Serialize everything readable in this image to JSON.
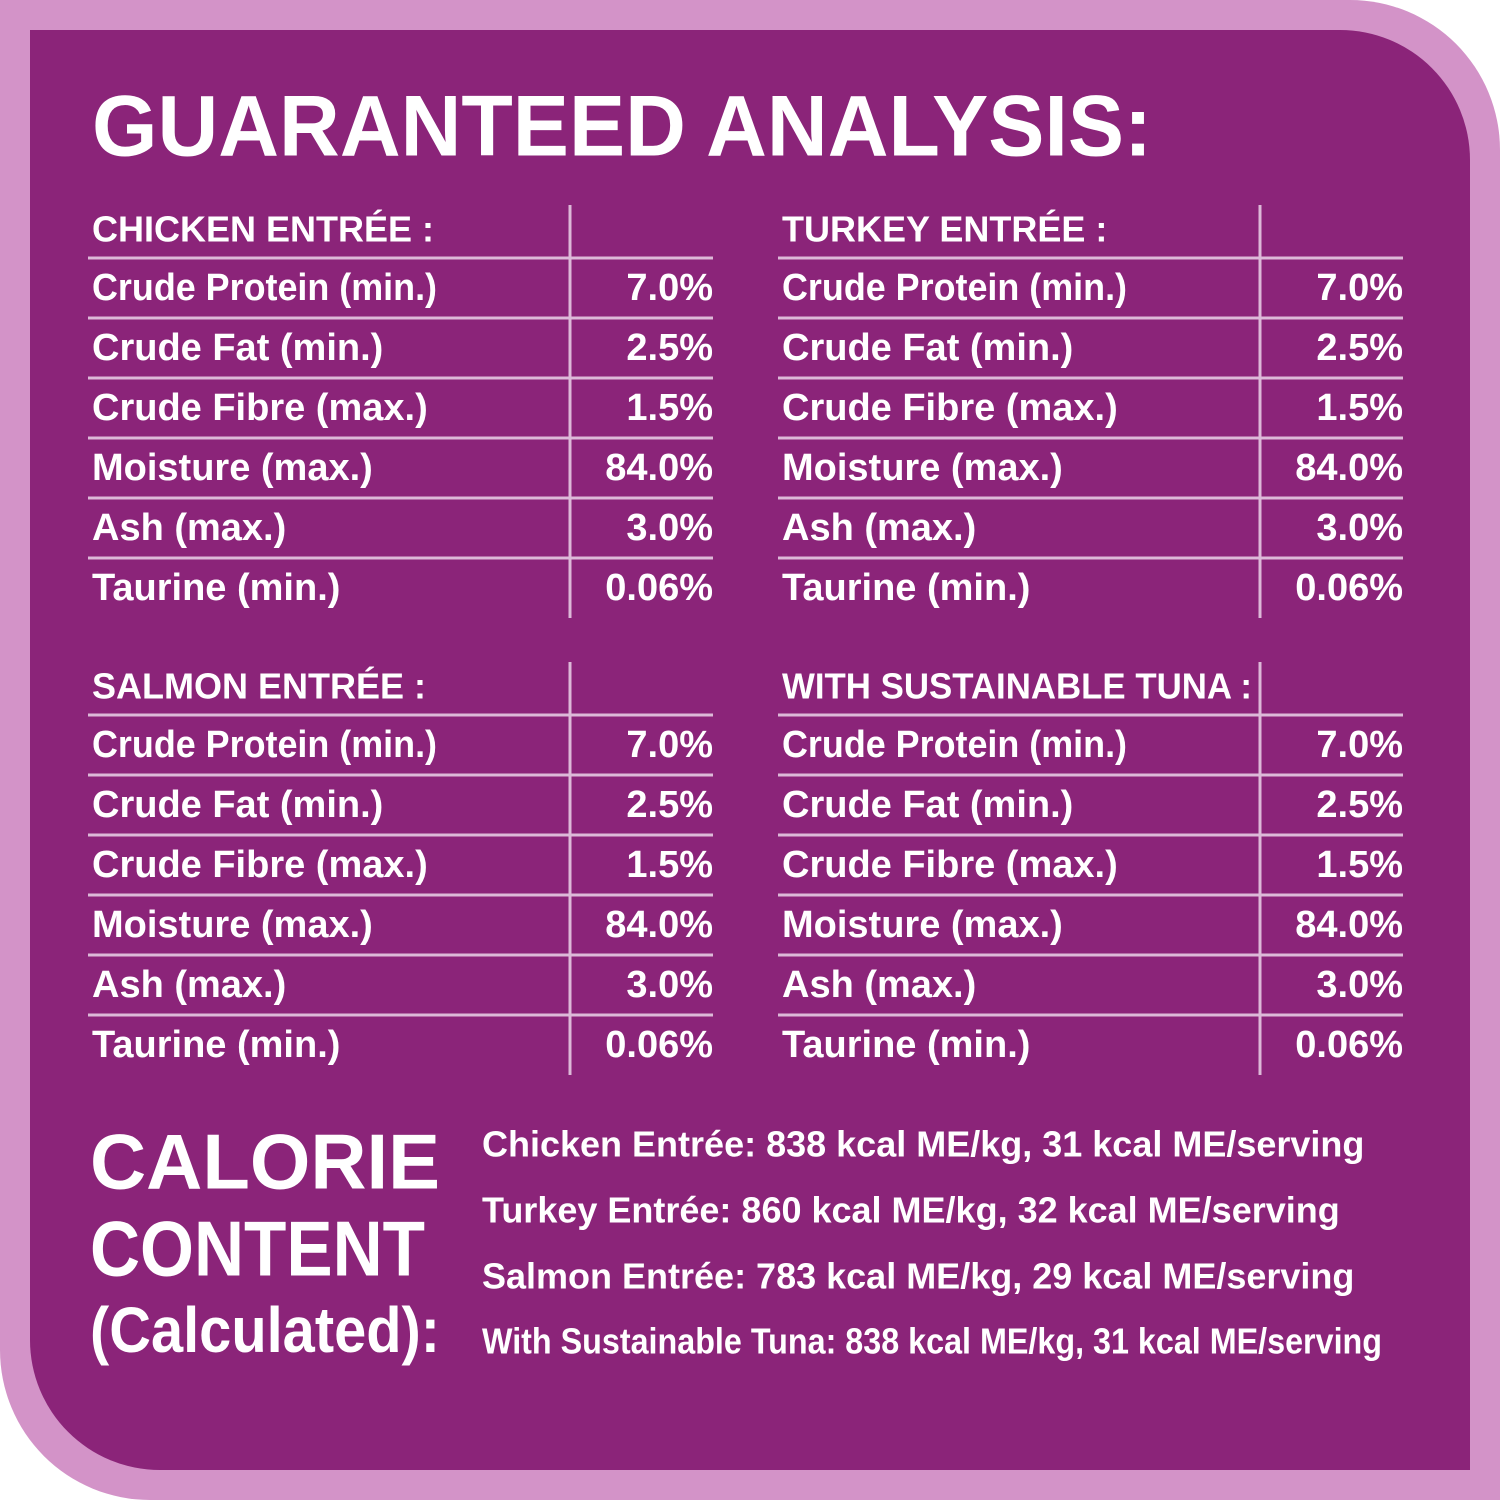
{
  "header": {
    "title": "GUARANTEED ANALYSIS:"
  },
  "tables": [
    {
      "title": "CHICKEN ENTRÉE :",
      "rows": [
        [
          "Crude Protein (min.)",
          "7.0%"
        ],
        [
          "Crude Fat (min.)",
          "2.5%"
        ],
        [
          "Crude Fibre (max.)",
          "1.5%"
        ],
        [
          "Moisture (max.)",
          "84.0%"
        ],
        [
          "Ash (max.)",
          "3.0%"
        ],
        [
          "Taurine (min.)",
          "0.06%"
        ]
      ]
    },
    {
      "title": "TURKEY ENTRÉE :",
      "rows": [
        [
          "Crude Protein (min.)",
          "7.0%"
        ],
        [
          "Crude Fat (min.)",
          "2.5%"
        ],
        [
          "Crude Fibre (max.)",
          "1.5%"
        ],
        [
          "Moisture (max.)",
          "84.0%"
        ],
        [
          "Ash (max.)",
          "3.0%"
        ],
        [
          "Taurine (min.)",
          "0.06%"
        ]
      ]
    },
    {
      "title": "SALMON ENTRÉE :",
      "rows": [
        [
          "Crude Protein (min.)",
          "7.0%"
        ],
        [
          "Crude Fat (min.)",
          "2.5%"
        ],
        [
          "Crude Fibre (max.)",
          "1.5%"
        ],
        [
          "Moisture (max.)",
          "84.0%"
        ],
        [
          "Ash (max.)",
          "3.0%"
        ],
        [
          "Taurine (min.)",
          "0.06%"
        ]
      ]
    },
    {
      "title": "WITH SUSTAINABLE TUNA :",
      "rows": [
        [
          "Crude Protein (min.)",
          "7.0%"
        ],
        [
          "Crude Fat (min.)",
          "2.5%"
        ],
        [
          "Crude Fibre (max.)",
          "1.5%"
        ],
        [
          "Moisture (max.)",
          "84.0%"
        ],
        [
          "Ash (max.)",
          "3.0%"
        ],
        [
          "Taurine (min.)",
          "0.06%"
        ]
      ]
    }
  ],
  "calorie": {
    "title_lines": [
      "CALORIE",
      "CONTENT",
      "(Calculated):"
    ],
    "lines": [
      "Chicken Entrée: 838 kcal ME/kg, 31 kcal ME/serving",
      "Turkey Entrée: 860 kcal ME/kg, 32 kcal ME/serving",
      "Salmon Entrée: 783 kcal ME/kg, 29 kcal ME/serving",
      "With Sustainable Tuna: 838 kcal ME/kg, 31 kcal ME/serving"
    ]
  }
}
